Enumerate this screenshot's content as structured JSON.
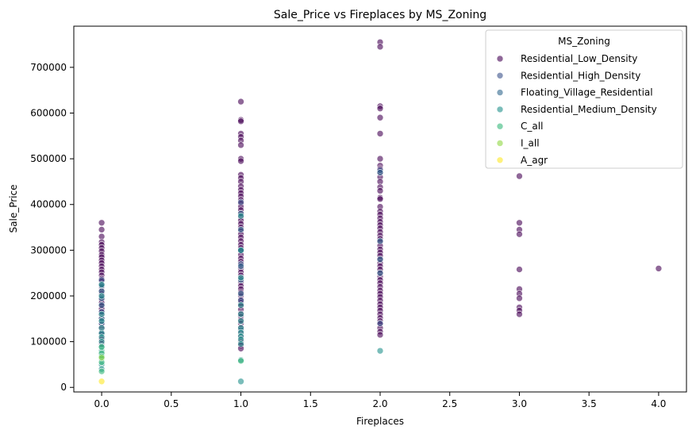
{
  "chart_data": {
    "type": "scatter",
    "title": "Sale_Price vs Fireplaces by MS_Zoning",
    "xlabel": "Fireplaces",
    "ylabel": "Sale_Price",
    "xlim": [
      -0.2,
      4.2
    ],
    "ylim": [
      -10000,
      790000
    ],
    "x_ticks": [
      0.0,
      0.5,
      1.0,
      1.5,
      2.0,
      2.5,
      3.0,
      3.5,
      4.0
    ],
    "x_tick_labels": [
      "0.0",
      "0.5",
      "1.0",
      "1.5",
      "2.0",
      "2.5",
      "3.0",
      "3.5",
      "4.0"
    ],
    "y_ticks": [
      0,
      100000,
      200000,
      300000,
      400000,
      500000,
      600000,
      700000
    ],
    "y_tick_labels": [
      "0",
      "100000",
      "200000",
      "300000",
      "400000",
      "500000",
      "600000",
      "700000"
    ],
    "grid": false,
    "legend": {
      "title": "MS_Zoning",
      "placement": "upper right"
    },
    "series": [
      {
        "name": "Residential_Low_Density",
        "color": "#440154",
        "points": [
          [
            0,
            360000
          ],
          [
            0,
            345000
          ],
          [
            0,
            330000
          ],
          [
            0,
            318000
          ],
          [
            0,
            312000
          ],
          [
            0,
            305000
          ],
          [
            0,
            298000
          ],
          [
            0,
            290000
          ],
          [
            0,
            285000
          ],
          [
            0,
            278000
          ],
          [
            0,
            272000
          ],
          [
            0,
            265000
          ],
          [
            0,
            258000
          ],
          [
            0,
            252000
          ],
          [
            0,
            245000
          ],
          [
            0,
            238000
          ],
          [
            0,
            232000
          ],
          [
            0,
            225000
          ],
          [
            0,
            218000
          ],
          [
            0,
            212000
          ],
          [
            0,
            205000
          ],
          [
            0,
            198000
          ],
          [
            0,
            192000
          ],
          [
            0,
            185000
          ],
          [
            0,
            178000
          ],
          [
            0,
            172000
          ],
          [
            0,
            165000
          ],
          [
            0,
            158000
          ],
          [
            0,
            152000
          ],
          [
            0,
            145000
          ],
          [
            0,
            138000
          ],
          [
            0,
            130000
          ],
          [
            0,
            122000
          ],
          [
            0,
            115000
          ],
          [
            0,
            105000
          ],
          [
            0,
            95000
          ],
          [
            1,
            625000
          ],
          [
            1,
            585000
          ],
          [
            1,
            582000
          ],
          [
            1,
            555000
          ],
          [
            1,
            548000
          ],
          [
            1,
            540000
          ],
          [
            1,
            530000
          ],
          [
            1,
            500000
          ],
          [
            1,
            495000
          ],
          [
            1,
            465000
          ],
          [
            1,
            458000
          ],
          [
            1,
            450000
          ],
          [
            1,
            440000
          ],
          [
            1,
            432000
          ],
          [
            1,
            425000
          ],
          [
            1,
            418000
          ],
          [
            1,
            410000
          ],
          [
            1,
            402000
          ],
          [
            1,
            395000
          ],
          [
            1,
            388000
          ],
          [
            1,
            380000
          ],
          [
            1,
            372000
          ],
          [
            1,
            365000
          ],
          [
            1,
            358000
          ],
          [
            1,
            350000
          ],
          [
            1,
            342000
          ],
          [
            1,
            335000
          ],
          [
            1,
            328000
          ],
          [
            1,
            320000
          ],
          [
            1,
            312000
          ],
          [
            1,
            305000
          ],
          [
            1,
            298000
          ],
          [
            1,
            290000
          ],
          [
            1,
            282000
          ],
          [
            1,
            275000
          ],
          [
            1,
            268000
          ],
          [
            1,
            260000
          ],
          [
            1,
            252000
          ],
          [
            1,
            245000
          ],
          [
            1,
            238000
          ],
          [
            1,
            230000
          ],
          [
            1,
            222000
          ],
          [
            1,
            215000
          ],
          [
            1,
            208000
          ],
          [
            1,
            200000
          ],
          [
            1,
            192000
          ],
          [
            1,
            185000
          ],
          [
            1,
            178000
          ],
          [
            1,
            170000
          ],
          [
            1,
            162000
          ],
          [
            1,
            155000
          ],
          [
            1,
            148000
          ],
          [
            1,
            140000
          ],
          [
            1,
            130000
          ],
          [
            1,
            120000
          ],
          [
            1,
            110000
          ],
          [
            1,
            100000
          ],
          [
            1,
            92000
          ],
          [
            1,
            85000
          ],
          [
            2,
            755000
          ],
          [
            2,
            745000
          ],
          [
            2,
            615000
          ],
          [
            2,
            610000
          ],
          [
            2,
            590000
          ],
          [
            2,
            555000
          ],
          [
            2,
            500000
          ],
          [
            2,
            485000
          ],
          [
            2,
            478000
          ],
          [
            2,
            470000
          ],
          [
            2,
            460000
          ],
          [
            2,
            450000
          ],
          [
            2,
            438000
          ],
          [
            2,
            430000
          ],
          [
            2,
            415000
          ],
          [
            2,
            412000
          ],
          [
            2,
            395000
          ],
          [
            2,
            385000
          ],
          [
            2,
            378000
          ],
          [
            2,
            370000
          ],
          [
            2,
            362000
          ],
          [
            2,
            355000
          ],
          [
            2,
            348000
          ],
          [
            2,
            340000
          ],
          [
            2,
            332000
          ],
          [
            2,
            325000
          ],
          [
            2,
            318000
          ],
          [
            2,
            310000
          ],
          [
            2,
            302000
          ],
          [
            2,
            295000
          ],
          [
            2,
            288000
          ],
          [
            2,
            280000
          ],
          [
            2,
            272000
          ],
          [
            2,
            265000
          ],
          [
            2,
            258000
          ],
          [
            2,
            250000
          ],
          [
            2,
            242000
          ],
          [
            2,
            235000
          ],
          [
            2,
            228000
          ],
          [
            2,
            220000
          ],
          [
            2,
            212000
          ],
          [
            2,
            205000
          ],
          [
            2,
            198000
          ],
          [
            2,
            190000
          ],
          [
            2,
            182000
          ],
          [
            2,
            175000
          ],
          [
            2,
            168000
          ],
          [
            2,
            160000
          ],
          [
            2,
            152000
          ],
          [
            2,
            145000
          ],
          [
            2,
            138000
          ],
          [
            2,
            130000
          ],
          [
            2,
            122000
          ],
          [
            2,
            115000
          ],
          [
            3,
            462000
          ],
          [
            3,
            360000
          ],
          [
            3,
            345000
          ],
          [
            3,
            335000
          ],
          [
            3,
            258000
          ],
          [
            3,
            215000
          ],
          [
            3,
            205000
          ],
          [
            3,
            195000
          ],
          [
            3,
            175000
          ],
          [
            3,
            168000
          ],
          [
            3,
            160000
          ],
          [
            4,
            260000
          ]
        ]
      },
      {
        "name": "Residential_High_Density",
        "color": "#3b528b",
        "points": [
          [
            0,
            235000
          ],
          [
            0,
            165000
          ],
          [
            0,
            140000
          ],
          [
            0,
            120000
          ],
          [
            1,
            405000
          ],
          [
            1,
            270000
          ],
          [
            1,
            190000
          ],
          [
            1,
            125000
          ],
          [
            2,
            475000
          ],
          [
            2,
            140000
          ]
        ]
      },
      {
        "name": "Floating_Village_Residential",
        "color": "#31688e",
        "points": [
          [
            0,
            222000
          ],
          [
            0,
            210000
          ],
          [
            0,
            195000
          ],
          [
            0,
            180000
          ],
          [
            0,
            150000
          ],
          [
            1,
            380000
          ],
          [
            1,
            345000
          ],
          [
            1,
            300000
          ],
          [
            1,
            265000
          ],
          [
            1,
            235000
          ],
          [
            1,
            205000
          ],
          [
            2,
            470000
          ],
          [
            2,
            320000
          ],
          [
            2,
            280000
          ],
          [
            2,
            250000
          ]
        ]
      },
      {
        "name": "Residential_Medium_Density",
        "color": "#21918c",
        "points": [
          [
            0,
            225000
          ],
          [
            0,
            200000
          ],
          [
            0,
            160000
          ],
          [
            0,
            145000
          ],
          [
            0,
            130000
          ],
          [
            0,
            118000
          ],
          [
            0,
            110000
          ],
          [
            0,
            100000
          ],
          [
            0,
            90000
          ],
          [
            0,
            80000
          ],
          [
            0,
            72000
          ],
          [
            0,
            62000
          ],
          [
            0,
            50000
          ],
          [
            0,
            40000
          ],
          [
            1,
            375000
          ],
          [
            1,
            300000
          ],
          [
            1,
            240000
          ],
          [
            1,
            180000
          ],
          [
            1,
            160000
          ],
          [
            1,
            145000
          ],
          [
            1,
            130000
          ],
          [
            1,
            120000
          ],
          [
            1,
            112000
          ],
          [
            1,
            105000
          ],
          [
            1,
            95000
          ],
          [
            1,
            60000
          ],
          [
            1,
            13000
          ],
          [
            2,
            80000
          ]
        ]
      },
      {
        "name": "C_all",
        "color": "#35b779",
        "points": [
          [
            0,
            88000
          ],
          [
            0,
            75000
          ],
          [
            0,
            68000
          ],
          [
            0,
            55000
          ],
          [
            0,
            35000
          ],
          [
            1,
            58000
          ]
        ]
      },
      {
        "name": "I_all",
        "color": "#90d743",
        "points": [
          [
            0,
            65000
          ]
        ]
      },
      {
        "name": "A_agr",
        "color": "#fde725",
        "points": [
          [
            0,
            13000
          ]
        ]
      }
    ]
  }
}
